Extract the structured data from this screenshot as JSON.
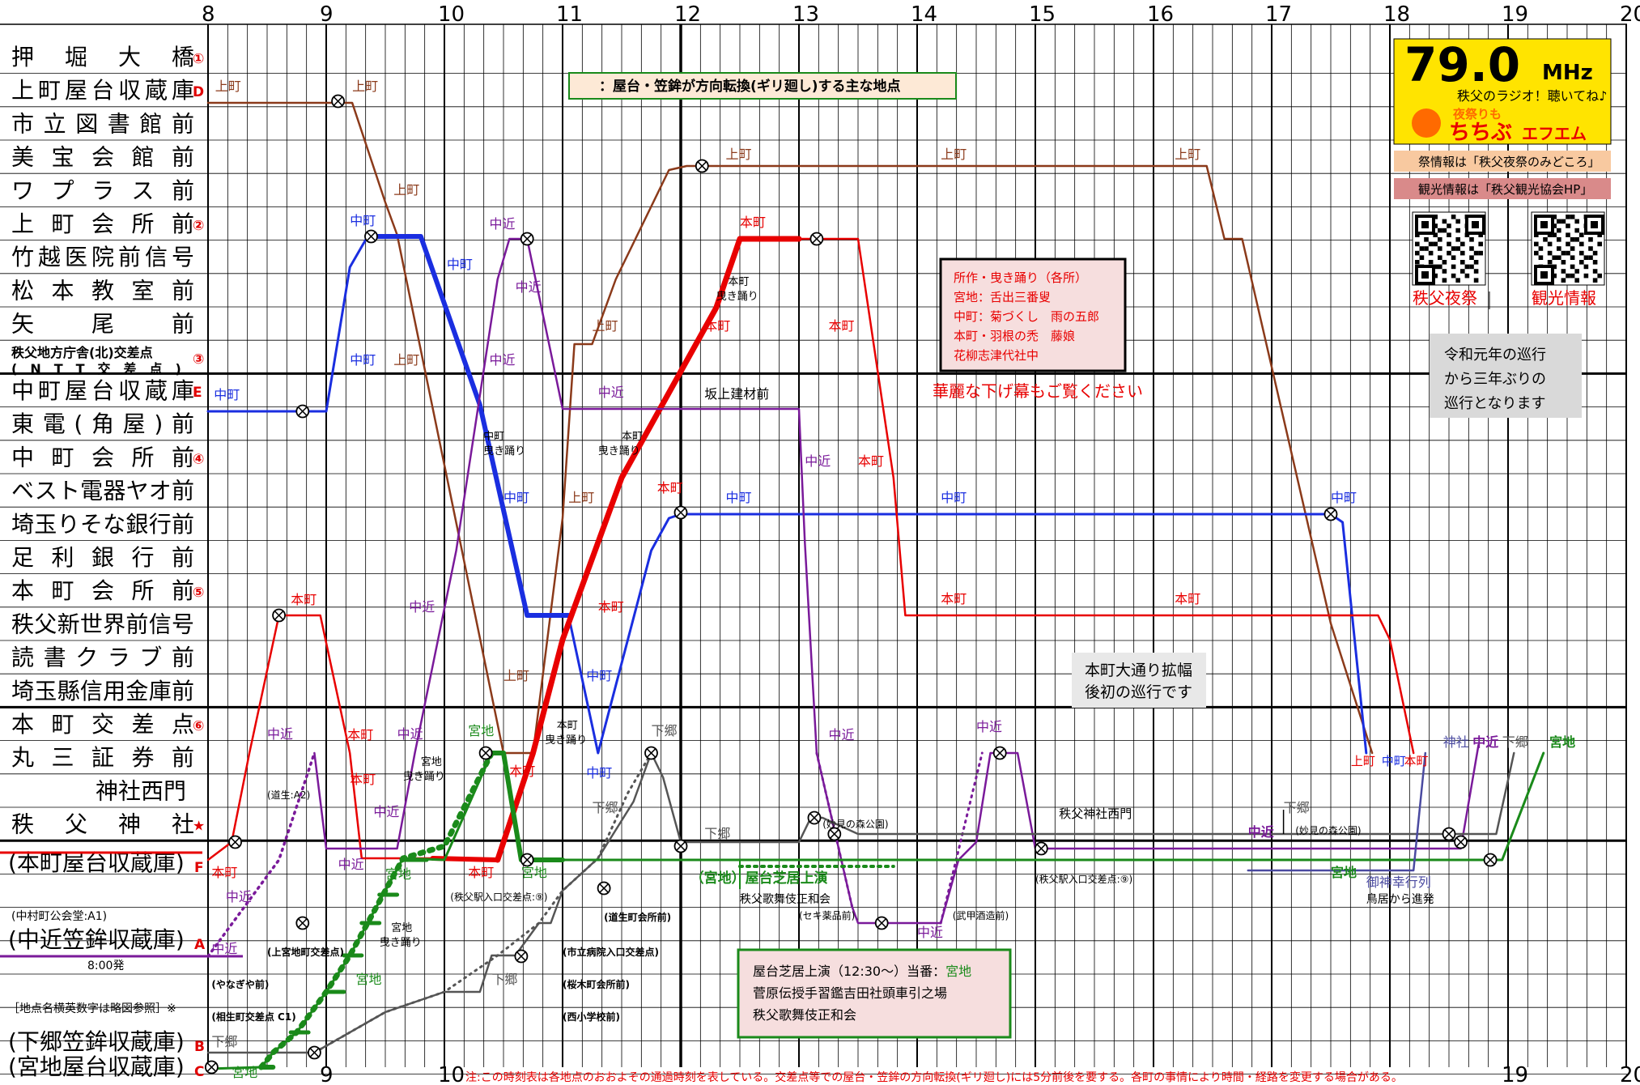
{
  "colors": {
    "kamimachi": "#8b3a1a",
    "nakamachi": "#1a2ee0",
    "honmachi": "#e80000",
    "nakachika": "#7a1a9a",
    "shimogo": "#555555",
    "miyaji": "#1a8a1a",
    "jinja": "#4a4aa0"
  },
  "hours_top": [
    "8",
    "9",
    "10",
    "11",
    "12",
    "13",
    "14",
    "15",
    "16",
    "17",
    "18",
    "19",
    "20"
  ],
  "hours_bottom": [
    "9",
    "10",
    "19",
    "20"
  ],
  "rows": [
    {
      "label": "押　堀　大　橋",
      "suffix": "①",
      "style": "spaced"
    },
    {
      "label": "上町屋台収蔵庫",
      "suffix": "D",
      "style": "spaced"
    },
    {
      "label": "市立図書館前",
      "suffix": "",
      "style": "spaced"
    },
    {
      "label": "美宝会館前",
      "suffix": "",
      "style": "spaced"
    },
    {
      "label": "ワプラス前",
      "suffix": "",
      "style": "spaced"
    },
    {
      "label": "上町会所前",
      "suffix": "②",
      "style": "spaced"
    },
    {
      "label": "竹越医院前信号",
      "suffix": "",
      "style": "spaced"
    },
    {
      "label": "松本教室前",
      "suffix": "",
      "style": "spaced"
    },
    {
      "label": "矢　　尾　　前",
      "suffix": "",
      "style": "spaced"
    },
    {
      "label": "秩父地方庁舎(北)交差点",
      "label2": "(　N　T　T　交　差　点　)",
      "suffix": "③",
      "style": "double"
    },
    {
      "label": "中町屋台収蔵庫",
      "suffix": "E",
      "style": "spaced"
    },
    {
      "label": "東電(角屋)前",
      "suffix": "",
      "style": "spaced"
    },
    {
      "label": "中町会所前",
      "suffix": "④",
      "style": "spaced"
    },
    {
      "label": "ベスト電器ヤオ前",
      "suffix": "",
      "style": "spaced"
    },
    {
      "label": "埼玉りそな銀行前",
      "suffix": "",
      "style": "spaced"
    },
    {
      "label": "足利銀行前",
      "suffix": "",
      "style": "spaced"
    },
    {
      "label": "本町会所前",
      "suffix": "⑤",
      "style": "spaced"
    },
    {
      "label": "秩父新世界前信号",
      "suffix": "",
      "style": "spaced"
    },
    {
      "label": "読書クラブ前",
      "suffix": "",
      "style": "spaced"
    },
    {
      "label": "埼玉縣信用金庫前",
      "suffix": "",
      "style": "spaced"
    },
    {
      "label": "本町交差点",
      "suffix": "⑥",
      "style": "spaced"
    },
    {
      "label": "丸三証券前",
      "suffix": "",
      "style": "spaced"
    },
    {
      "label": "神社西門",
      "suffix": "",
      "style": "indent"
    },
    {
      "label": "秩　　父　　神　　社",
      "suffix": "★",
      "style": "spaced"
    }
  ],
  "lower_labels": [
    {
      "key": "honmachi_store",
      "label": "(本町屋台収蔵庫)",
      "suffix": "F"
    },
    {
      "key": "nakachika_store",
      "label": "(中近笠鉾収蔵庫)",
      "suffix": "A"
    },
    {
      "key": "shimogo_store",
      "label": "(下郷笠鉾収蔵庫)",
      "suffix": "B"
    },
    {
      "key": "miyaji_store",
      "label": "(宮地屋台収蔵庫)",
      "suffix": "C"
    }
  ],
  "small_notes": {
    "nakamura": "(中村町公会堂:A1)",
    "start_time": "8:00発",
    "legend_note": "［地点名横英数字は略図参照］※",
    "kamimiyaji": "(上宮地町交差点)",
    "yanagiya": "(やなぎや前)",
    "aio": "(相生町交差点 C1)",
    "dosei": "(道生:A2)",
    "station": "(秩父駅入口交差点:⑨)",
    "douseicho": "(道生町会所前)",
    "hospital": "(市立病院入口交差点)",
    "sakuragi": "(桜木町会所前)",
    "nishi": "(西小学校前)",
    "station2": "(秩父駅入口交差点:⑨)",
    "myoken": "(妙見の森公園)",
    "myoken2": "(妙見の森公園)",
    "seki": "(セキ薬品前)",
    "bukou": "(武甲酒造前)",
    "kabuki": "秩父歌舞伎正和会",
    "sakagami": "坂上建材前",
    "jinja_nishimon": "秩父神社西門",
    "torii": "鳥居から進発"
  },
  "legend_box": "⊗：屋台・笠鉾が方向転換(ギリ廻し)する主な地点",
  "radio": {
    "freq": "79.0",
    "unit": "MHz",
    "catch": "秩父のラジオ！聴いてね♪",
    "sub": "夜祭りも",
    "name": "ちちぶ",
    "name2": "エフエム"
  },
  "info1": "祭情報は「秩父夜祭のみどころ」",
  "info2": "観光情報は「秩父観光協会HP」",
  "qr1_label": "秩父夜祭",
  "qr2_label": "観光情報",
  "note_reiwa": [
    "令和元年の巡行",
    "から三年ぶりの",
    "巡行となります"
  ],
  "dance_box": [
    "所作・曳き踊り（各所）",
    "宮地：舌出三番叟",
    "中町：菊づくし　雨の五郎",
    "本町・羽根の禿　藤娘",
    "花柳志津代社中"
  ],
  "dance_caption": "華麗な下げ幕もご覧ください",
  "honmachi_note": [
    "本町大通り拡幅",
    "後初の巡行です"
  ],
  "kabuki_box": {
    "line1a": "屋台芝居上演（12:30～）当番：",
    "line1b": "宮地",
    "line2": "菅原伝授手習鑑吉田社頭車引之場",
    "line3": "秩父歌舞伎正和会"
  },
  "kabuki_banner": {
    "a": "（宮地）",
    "b": "屋台芝居上演"
  },
  "footnote": "注:この時刻表は各地点のおおよその通過時刻を表している。交差点等での屋台・笠鉾の方向転換(ギリ廻し)には5分前後を要する。各町の事情により時間・経路を変更する場合がある。",
  "route_labels": {
    "kamimachi": "上町",
    "nakamachi": "中町",
    "honmachi": "本町",
    "nakachika": "中近",
    "shimogo": "下郷",
    "miyaji": "宮地",
    "jinja": "神社",
    "hikiodori": "曳き踊り",
    "gyoretsu": "御神幸行列"
  }
}
